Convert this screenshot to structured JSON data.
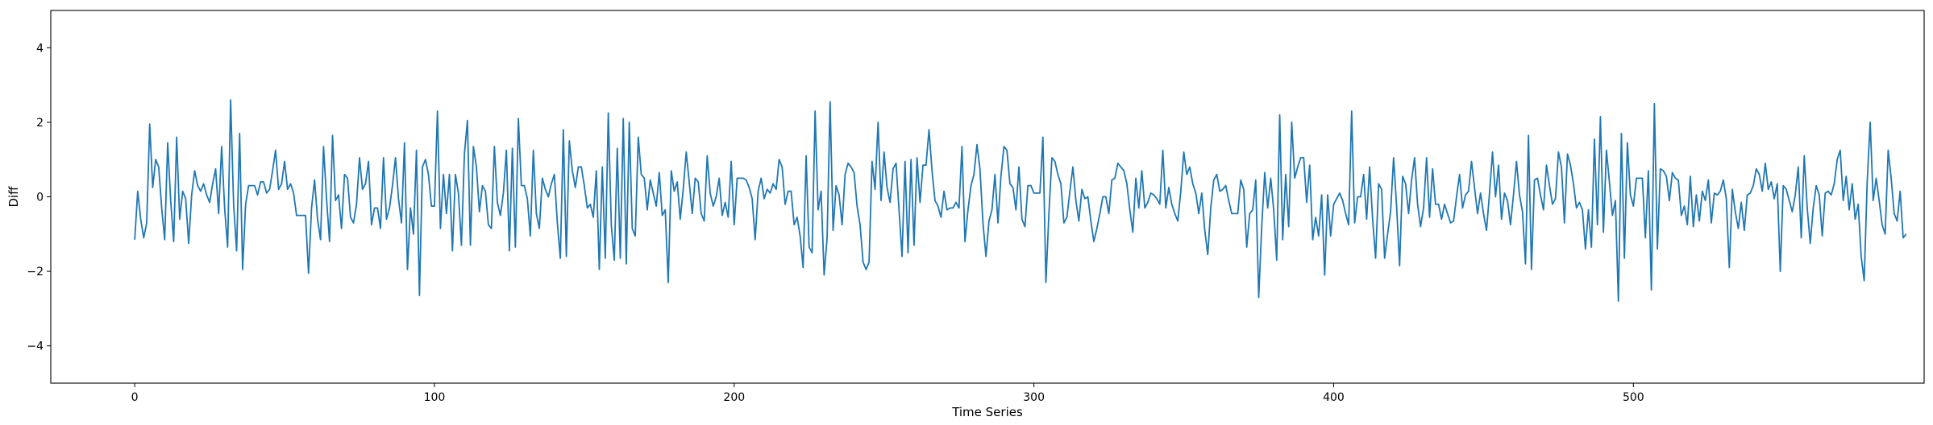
{
  "chart_data": {
    "type": "line",
    "title": "",
    "xlabel": "Time Series",
    "ylabel": "Diff",
    "xlim": [
      -28,
      597
    ],
    "ylim": [
      -5,
      5
    ],
    "xticks": [
      0,
      100,
      200,
      300,
      400,
      500
    ],
    "yticks": [
      -4,
      -2,
      0,
      2,
      4
    ],
    "grid": false,
    "line_color": "#1f77b4",
    "series": [
      {
        "x_start": 0,
        "x_step": 1,
        "values": [
          -1.15,
          0.15,
          -0.6,
          -1.1,
          -0.7,
          1.95,
          0.25,
          1.0,
          0.8,
          -0.3,
          -1.15,
          1.45,
          -0.1,
          -1.2,
          1.6,
          -0.6,
          0.15,
          -0.05,
          -1.25,
          0.05,
          0.7,
          0.3,
          0.15,
          0.35,
          0.05,
          -0.15,
          0.35,
          0.75,
          -0.45,
          1.35,
          -0.3,
          -1.35,
          2.6,
          -0.2,
          -1.45,
          1.7,
          -1.95,
          -0.2,
          0.3,
          0.3,
          0.3,
          0.05,
          0.4,
          0.4,
          0.1,
          0.2,
          0.7,
          1.25,
          0.2,
          0.35,
          0.95,
          0.2,
          0.35,
          0.1,
          -0.5,
          -0.5,
          -0.5,
          -0.5,
          -2.05,
          -0.3,
          0.45,
          -0.6,
          -1.15,
          1.35,
          -0.05,
          -1.2,
          1.65,
          -0.1,
          0.05,
          -0.85,
          0.6,
          0.5,
          -0.55,
          -0.7,
          -0.2,
          1.05,
          0.2,
          0.35,
          0.95,
          -0.75,
          -0.3,
          -0.3,
          -0.85,
          1.05,
          -0.6,
          -0.3,
          0.3,
          1.05,
          -0.05,
          -0.7,
          1.45,
          -1.95,
          -0.3,
          -1.0,
          1.25,
          -2.65,
          0.8,
          1.0,
          0.6,
          -0.25,
          -0.25,
          2.3,
          -0.85,
          0.6,
          -0.45,
          0.6,
          -1.45,
          0.6,
          0.1,
          -1.3,
          1.15,
          2.05,
          -1.3,
          1.35,
          0.8,
          -0.4,
          0.3,
          0.15,
          -0.75,
          -0.85,
          1.35,
          -0.15,
          -0.5,
          0.1,
          1.25,
          -1.45,
          1.3,
          -1.35,
          2.1,
          0.3,
          0.3,
          -0.05,
          -1.05,
          1.25,
          -0.45,
          -0.85,
          0.5,
          0.2,
          0.0,
          0.35,
          0.6,
          -0.7,
          -1.65,
          1.8,
          -1.6,
          1.5,
          0.7,
          0.25,
          0.8,
          0.8,
          0.3,
          -0.3,
          -0.2,
          -0.55,
          0.7,
          -1.95,
          0.8,
          -1.65,
          2.25,
          -0.75,
          -1.7,
          1.3,
          -1.65,
          2.1,
          -1.8,
          2.0,
          -0.85,
          -1.05,
          1.6,
          0.6,
          0.5,
          -0.35,
          0.45,
          0.1,
          -0.25,
          0.65,
          -0.5,
          -0.35,
          -2.3,
          0.7,
          0.15,
          0.4,
          -0.6,
          0.2,
          1.2,
          0.4,
          -0.45,
          0.5,
          0.4,
          -0.45,
          -0.65,
          1.1,
          0.1,
          -0.25,
          0.0,
          0.5,
          -0.5,
          -0.15,
          -0.55,
          0.95,
          -0.75,
          0.5,
          0.5,
          0.5,
          0.45,
          0.25,
          -0.05,
          -1.15,
          0.15,
          0.5,
          -0.05,
          0.2,
          0.1,
          0.35,
          0.2,
          1.0,
          0.8,
          -0.2,
          0.15,
          0.15,
          -0.75,
          -0.55,
          -1.05,
          -1.9,
          1.1,
          -1.35,
          -1.5,
          2.3,
          -0.35,
          0.15,
          -2.1,
          -1.1,
          2.55,
          -0.9,
          0.3,
          0.05,
          -0.75,
          0.6,
          0.9,
          0.8,
          0.65,
          -0.25,
          -0.75,
          -1.75,
          -1.95,
          -1.75,
          0.95,
          0.2,
          2.0,
          -0.1,
          1.2,
          0.25,
          -0.15,
          0.75,
          0.9,
          -0.35,
          -1.6,
          0.95,
          -1.5,
          1.0,
          -1.3,
          1.05,
          -0.15,
          0.85,
          0.85,
          1.8,
          0.7,
          -0.1,
          -0.25,
          -0.55,
          0.15,
          -0.35,
          -0.3,
          -0.3,
          -0.15,
          -0.3,
          1.35,
          -1.2,
          -0.35,
          0.3,
          0.6,
          1.4,
          0.75,
          -0.7,
          -1.6,
          -0.65,
          -0.35,
          0.6,
          -0.7,
          0.55,
          1.35,
          1.25,
          0.35,
          0.25,
          -0.35,
          0.8,
          -0.6,
          -0.8,
          0.3,
          0.3,
          0.1,
          0.1,
          0.1,
          1.6,
          -2.3,
          -0.45,
          1.05,
          0.95,
          0.6,
          0.35,
          -0.7,
          -0.55,
          0.15,
          0.8,
          -0.1,
          -0.65,
          0.2,
          -0.05,
          0.0,
          -0.65,
          -1.2,
          -0.85,
          -0.45,
          0.0,
          0.0,
          -0.45,
          0.45,
          0.5,
          0.9,
          0.8,
          0.7,
          0.35,
          -0.35,
          -0.95,
          0.5,
          -0.3,
          0.7,
          -0.3,
          -0.15,
          0.1,
          0.05,
          -0.05,
          -0.2,
          1.25,
          -0.3,
          0.25,
          -0.2,
          -0.45,
          -0.65,
          0.15,
          1.2,
          0.6,
          0.8,
          0.35,
          0.1,
          -0.45,
          0.1,
          -0.9,
          -1.55,
          -0.3,
          0.45,
          0.6,
          0.15,
          0.2,
          0.3,
          -0.1,
          -0.45,
          -0.45,
          -0.45,
          0.45,
          0.2,
          -1.35,
          -0.45,
          -0.35,
          0.45,
          -2.7,
          -0.8,
          0.65,
          -0.3,
          0.5,
          -0.35,
          -1.7,
          2.2,
          -1.15,
          0.6,
          -0.8,
          2.0,
          0.5,
          0.8,
          1.05,
          1.05,
          -0.15,
          0.85,
          -1.15,
          -0.55,
          -1.05,
          0.05,
          -2.1,
          0.05,
          -1.05,
          -0.2,
          -0.05,
          0.1,
          -0.1,
          -0.45,
          -0.75,
          2.3,
          -0.7,
          0.0,
          0.0,
          0.6,
          -0.6,
          0.8,
          -0.6,
          -1.65,
          0.35,
          0.2,
          -1.65,
          -1.0,
          -0.4,
          1.05,
          -0.25,
          -1.85,
          0.55,
          0.35,
          -0.45,
          0.45,
          1.05,
          -0.2,
          -0.8,
          -0.3,
          1.05,
          -0.55,
          0.75,
          -0.2,
          -0.2,
          -0.6,
          -0.2,
          -0.45,
          -0.7,
          -0.65,
          0.0,
          0.6,
          -0.3,
          0.05,
          0.15,
          0.95,
          0.25,
          -0.45,
          0.1,
          -0.45,
          -0.9,
          0.1,
          1.2,
          0.0,
          0.85,
          -0.6,
          0.1,
          -0.1,
          -0.75,
          0.05,
          0.95,
          0.05,
          -0.4,
          -1.8,
          1.65,
          -1.95,
          0.45,
          0.5,
          0.05,
          -0.35,
          0.85,
          0.3,
          -0.2,
          -0.05,
          1.2,
          0.8,
          -0.7,
          1.15,
          0.85,
          0.35,
          -0.3,
          -0.15,
          -0.35,
          -1.4,
          -0.35,
          -1.35,
          1.55,
          -0.75,
          2.15,
          -0.95,
          1.25,
          0.4,
          -0.5,
          -0.1,
          -2.8,
          1.7,
          -1.65,
          1.45,
          0.05,
          -0.25,
          0.5,
          0.5,
          0.5,
          -1.1,
          0.7,
          -2.5,
          2.5,
          -1.4,
          0.75,
          0.7,
          0.55,
          -0.1,
          0.65,
          0.5,
          0.45,
          -0.5,
          -0.25,
          -0.75,
          0.55,
          -0.8,
          0.05,
          -0.65,
          0.15,
          -0.1,
          0.45,
          -0.7,
          0.1,
          0.05,
          0.15,
          0.45,
          -0.05,
          -1.9,
          0.2,
          -0.4,
          -0.85,
          -0.15,
          -0.9,
          0.05,
          0.1,
          0.3,
          0.75,
          0.6,
          0.15,
          0.9,
          0.2,
          0.4,
          -0.05,
          0.35,
          -2.0,
          0.3,
          0.2,
          -0.1,
          -0.4,
          0.05,
          0.8,
          -1.1,
          1.1,
          -0.3,
          -1.25,
          -0.3,
          0.3,
          0.05,
          -1.05,
          0.1,
          0.15,
          0.05,
          0.35,
          1.0,
          1.25,
          -0.1,
          0.55,
          -0.35,
          0.35,
          -0.6,
          -0.2,
          -1.6,
          -2.25,
          0.4,
          2.0,
          -0.1,
          0.5,
          -0.1,
          -0.75,
          -1.0,
          1.25,
          0.5,
          -0.45,
          -0.65,
          0.15,
          -1.1,
          -1.0
        ]
      }
    ]
  }
}
